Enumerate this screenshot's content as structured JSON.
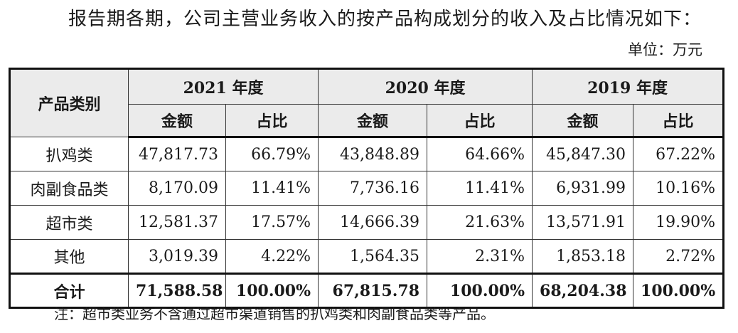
{
  "intro_text": "报告期各期，公司主营业务收入的按产品构成划分的收入及占比情况如下：",
  "unit_text": "单位：万元",
  "table": {
    "category_header": "产品类别",
    "years": [
      "2021 年度",
      "2020 年度",
      "2019 年度"
    ],
    "amount_header": "金额",
    "ratio_header": "占比",
    "rows": [
      {
        "category": "扒鸡类",
        "values": [
          "47,817.73",
          "66.79%",
          "43,848.89",
          "64.66%",
          "45,847.30",
          "67.22%"
        ]
      },
      {
        "category": "肉副食品类",
        "values": [
          "8,170.09",
          "11.41%",
          "7,736.16",
          "11.41%",
          "6,931.99",
          "10.16%"
        ]
      },
      {
        "category": "超市类",
        "values": [
          "12,581.37",
          "17.57%",
          "14,666.39",
          "21.63%",
          "13,571.91",
          "19.90%"
        ]
      },
      {
        "category": "其他",
        "values": [
          "3,019.39",
          "4.22%",
          "1,564.35",
          "2.31%",
          "1,853.18",
          "2.72%"
        ]
      }
    ],
    "total": {
      "category": "合计",
      "values": [
        "71,588.58",
        "100.00%",
        "67,815.78",
        "100.00%",
        "68,204.38",
        "100.00%"
      ]
    }
  },
  "note_text": "注：超市类业务不含通过超市渠道销售的扒鸡类和肉副食品类等产品。"
}
